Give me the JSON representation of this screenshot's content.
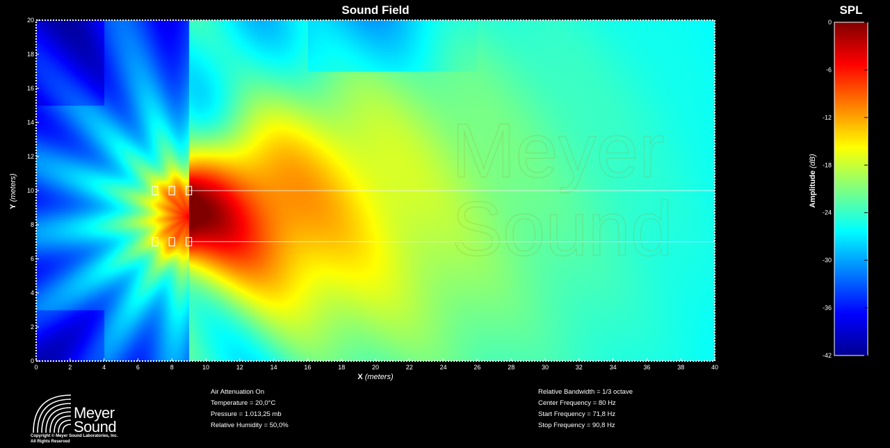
{
  "chart_data": [
    {
      "type": "heatmap",
      "title": "Sound Field",
      "xlabel": "X",
      "xlabel_unit": "(meters)",
      "ylabel": "Y",
      "ylabel_unit": "(meters)",
      "xlim": [
        0,
        40
      ],
      "ylim": [
        0,
        20
      ],
      "xticks": [
        0,
        2,
        4,
        6,
        8,
        10,
        12,
        14,
        16,
        18,
        20,
        22,
        24,
        26,
        28,
        30,
        32,
        34,
        36,
        38,
        40
      ],
      "yticks": [
        0,
        2,
        4,
        6,
        8,
        10,
        12,
        14,
        16,
        18,
        20
      ],
      "grid": false,
      "colormap": "jet",
      "lobe_center": [
        12,
        8.5
      ],
      "sources": [
        {
          "x": 7,
          "y": 10
        },
        {
          "x": 8,
          "y": 10
        },
        {
          "x": 9,
          "y": 10
        },
        {
          "x": 7,
          "y": 7
        },
        {
          "x": 8,
          "y": 7
        },
        {
          "x": 9,
          "y": 7
        }
      ],
      "reference_lines_y": [
        10,
        7
      ]
    },
    {
      "type": "colorbar",
      "title": "SPL",
      "label": "Amplitude",
      "label_unit": "(dB)",
      "range": [
        -42,
        0
      ],
      "ticks": [
        0,
        -6,
        -12,
        -18,
        -24,
        -30,
        -36,
        -42
      ]
    }
  ],
  "info_left": [
    "Air Attenuation On",
    "Temperature = 20,0°C",
    "Pressure = 1.013,25  mb",
    "Relative Humidity = 50,0%"
  ],
  "info_right": [
    "Relative Bandwidth = 1/3 octave",
    "Center Frequency = 80 Hz",
    "Start Frequency = 71,8 Hz",
    "Stop Frequency = 90,8 Hz"
  ],
  "logo": {
    "line1": "Meyer",
    "line2": "Sound",
    "copyright1": "Copyright © Meyer Sound Laboratories, Inc.",
    "copyright2": "All Rights Reserved"
  },
  "watermark": [
    "Meyer",
    "Sound"
  ]
}
